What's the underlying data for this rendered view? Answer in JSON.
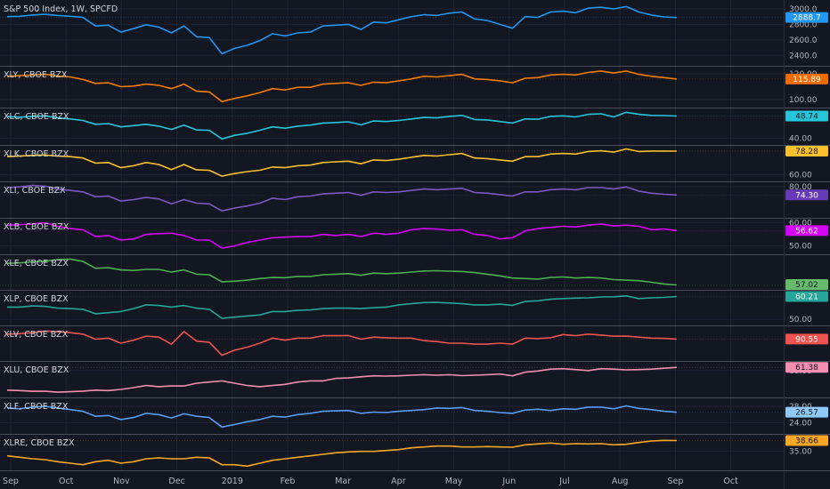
{
  "chart_data": {
    "type": "line",
    "x_axis": {
      "ticks": [
        "Sep",
        "Oct",
        "Nov",
        "Dec",
        "2019",
        "Feb",
        "Mar",
        "Apr",
        "May",
        "Jun",
        "Jul",
        "Aug",
        "Sep",
        "Oct"
      ],
      "grid": true
    },
    "panes": [
      {
        "label": "S&P 500 Index, 1W, SPCFD",
        "color": "#2962ff",
        "line_color": "#2196f3",
        "last_label": "2888.7",
        "badge_color": "#2196f3",
        "badge_text_color": "#ffffff",
        "ylim": [
          2300,
          3080
        ],
        "ticks": [
          {
            "v": 3000,
            "t": "3000.0"
          },
          {
            "v": 2800,
            "t": "2800.0"
          },
          {
            "v": 2600,
            "t": "2600.0"
          },
          {
            "v": 2400,
            "t": "2400.0"
          }
        ],
        "values": [
          2900,
          2905,
          2920,
          2930,
          2915,
          2905,
          2890,
          2780,
          2790,
          2700,
          2745,
          2795,
          2765,
          2690,
          2780,
          2640,
          2630,
          2420,
          2490,
          2530,
          2590,
          2680,
          2650,
          2690,
          2700,
          2780,
          2790,
          2800,
          2735,
          2830,
          2820,
          2860,
          2900,
          2925,
          2915,
          2945,
          2960,
          2870,
          2850,
          2800,
          2750,
          2900,
          2890,
          2960,
          2970,
          2950,
          3010,
          3020,
          3000,
          3030,
          2960,
          2920,
          2895,
          2888.7
        ]
      },
      {
        "label": "XLY, CBOE BZX",
        "color": "#f57c00",
        "line_color": "#f57c00",
        "last_label": "115.89",
        "badge_color": "#ef6c00",
        "badge_text_color": "#ffffff",
        "ylim": [
          96,
          124
        ],
        "ticks": [
          {
            "v": 120,
            "t": "120.00"
          },
          {
            "v": 100,
            "t": "100.00"
          }
        ],
        "values": [
          118,
          118.5,
          119,
          119.5,
          118.2,
          117.5,
          115.5,
          112.5,
          113,
          110,
          110.5,
          112,
          111,
          108.5,
          112,
          106.5,
          106,
          98.5,
          101,
          103,
          105.5,
          108.5,
          107.5,
          109.5,
          109.5,
          112,
          112.5,
          113,
          111,
          113.5,
          113,
          114.5,
          116,
          118,
          117.5,
          118.5,
          119.5,
          116,
          115.5,
          114.5,
          113,
          116.5,
          117,
          119,
          119.5,
          119,
          121,
          122,
          120.5,
          122,
          119.5,
          118,
          117,
          115.89
        ]
      },
      {
        "label": "XLC, CBOE BZX",
        "color": "#26c6da",
        "line_color": "#26c6da",
        "last_label": "48.74",
        "badge_color": "#26c6da",
        "badge_text_color": "#131722",
        "ylim": [
          38.5,
          51
        ],
        "ticks": [
          {
            "v": 40,
            "t": "40.00"
          }
        ],
        "values": [
          48.5,
          48.3,
          48.6,
          48.8,
          48.0,
          47.6,
          47.0,
          45.5,
          45.8,
          44.5,
          45,
          45.5,
          44.8,
          43.5,
          45.2,
          43.3,
          43.2,
          39.8,
          41.2,
          42,
          43.2,
          44.5,
          44,
          44.8,
          45.2,
          46,
          46.2,
          46.5,
          45.3,
          46.8,
          46.6,
          47,
          47.6,
          48.2,
          48,
          48.6,
          49,
          47.4,
          47.2,
          46.6,
          46,
          47.6,
          47.5,
          48.6,
          48.8,
          48.4,
          49.4,
          49.6,
          48.4,
          50.2,
          49.4,
          49,
          48.9,
          48.74
        ]
      },
      {
        "label": "XLK, CBOE BZX",
        "color": "#fbc02d",
        "line_color": "#fbc02d",
        "last_label": "78.28",
        "badge_color": "#fbc02d",
        "badge_text_color": "#131722",
        "ylim": [
          57,
          81
        ],
        "ticks": [
          {
            "v": 60,
            "t": "60.00"
          }
        ],
        "values": [
          74,
          74.5,
          75,
          75.3,
          74.5,
          74,
          73,
          69,
          69.5,
          65.5,
          67,
          69.5,
          68,
          64,
          68,
          63.8,
          63.5,
          59,
          61,
          62.5,
          63.5,
          66,
          65.5,
          67,
          67.5,
          69.5,
          70,
          70.5,
          68.5,
          71.5,
          71,
          72,
          73.5,
          75,
          74.5,
          75.5,
          76.5,
          73,
          72.5,
          71.5,
          70.5,
          74,
          74,
          76,
          76.5,
          76,
          78,
          78.5,
          77.5,
          80,
          78,
          78.3,
          78.3,
          78.28
        ]
      },
      {
        "label": "XLI, CBOE BZX",
        "color": "#7e57c2",
        "line_color": "#7e57c2",
        "last_label": "74.30",
        "badge_color": "#673ab7",
        "badge_text_color": "#ffffff",
        "ylim": [
          60,
          82
        ],
        "ticks": [
          {
            "v": 80,
            "t": "80.00"
          }
        ],
        "values": [
          79.5,
          80,
          81,
          80.5,
          78.5,
          77.5,
          76.5,
          73,
          73.5,
          70,
          71,
          72.5,
          71.5,
          68,
          71,
          68.5,
          68,
          63,
          65,
          66.5,
          68.5,
          72,
          71,
          73,
          73.5,
          75,
          75.5,
          76,
          74,
          76.5,
          76,
          76.5,
          77.5,
          78.5,
          78,
          78.5,
          79,
          76,
          75.5,
          74.5,
          73.5,
          76.5,
          76.5,
          78,
          78.5,
          78,
          79.5,
          79.5,
          78.5,
          80,
          77,
          75.5,
          74.8,
          74.3
        ]
      },
      {
        "label": "XLB, CBOE BZX",
        "color": "#d500f9",
        "line_color": "#d500f9",
        "last_label": "56.62",
        "badge_color": "#d500f9",
        "badge_text_color": "#ffffff",
        "ylim": [
          47.5,
          61
        ],
        "ticks": [
          {
            "v": 60,
            "t": "60.00"
          },
          {
            "v": 50,
            "t": "50.00"
          }
        ],
        "values": [
          59,
          59.2,
          59.5,
          60,
          58.5,
          57.5,
          57,
          54,
          54.5,
          52.5,
          53,
          55,
          55.3,
          55.5,
          54.5,
          52.5,
          52.5,
          49,
          50,
          51.5,
          52.5,
          53.5,
          53.8,
          54,
          54,
          55,
          54.5,
          55,
          54,
          55.5,
          55,
          55.5,
          57,
          57.5,
          57.3,
          56.8,
          57,
          55,
          54.5,
          53,
          53.5,
          56.5,
          57.5,
          58,
          58.5,
          58.2,
          59,
          59.5,
          58.6,
          59,
          58.5,
          57,
          57.3,
          56.62
        ]
      },
      {
        "label": "XLE, CBOE BZX",
        "color": "#43a047",
        "line_color": "#4caf50",
        "last_label": "57.02",
        "badge_color": "#66bb6a",
        "badge_text_color": "#131722",
        "ylim": [
          55,
          83
        ],
        "ticks": [],
        "values": [
          77,
          77.5,
          78.5,
          79,
          80.5,
          81,
          79,
          72.5,
          73,
          71,
          70.5,
          71.5,
          71.5,
          69,
          71,
          67,
          66.5,
          60,
          60.5,
          61.5,
          63,
          64,
          63.8,
          65,
          65,
          66.5,
          67,
          67.5,
          66,
          68,
          67.5,
          68,
          69,
          70,
          70.2,
          69.8,
          69.5,
          68.5,
          67,
          65.5,
          63.5,
          63,
          62.5,
          64,
          64.5,
          63.5,
          64,
          63.5,
          62,
          61.5,
          61,
          59.5,
          58,
          57.02
        ]
      },
      {
        "label": "XLP, CBOE BZX",
        "color": "#26a69a",
        "line_color": "#26a69a",
        "last_label": "60.21",
        "badge_color": "#26a69a",
        "badge_text_color": "#ffffff",
        "ylim": [
          48.5,
          62
        ],
        "ticks": [
          {
            "v": 50,
            "t": "50.00"
          }
        ],
        "values": [
          55.5,
          55.5,
          56,
          55.8,
          55,
          54.8,
          54.5,
          52.5,
          53,
          53.5,
          54.8,
          56.5,
          56.2,
          55.5,
          56.2,
          55,
          54.5,
          50.5,
          51,
          51.5,
          52,
          53.5,
          53.5,
          54,
          54.2,
          54.8,
          55,
          55,
          54.8,
          55.2,
          55.5,
          56.5,
          57,
          57.5,
          57.6,
          57.3,
          57,
          56.5,
          56.5,
          56.8,
          56.3,
          58,
          58.3,
          59,
          59.3,
          59.5,
          59.6,
          60,
          60.1,
          60.5,
          59.3,
          59.6,
          59.8,
          60.21
        ]
      },
      {
        "label": "XLV, CBOE BZX",
        "color": "#ef5350",
        "line_color": "#ef5350",
        "last_label": "90.55",
        "badge_color": "#ef5350",
        "badge_text_color": "#ffffff",
        "ylim": [
          81,
          96
        ],
        "ticks": [],
        "values": [
          93,
          93.2,
          93.7,
          94.5,
          94.2,
          93.7,
          93,
          90.5,
          91,
          88.5,
          90,
          92,
          91.5,
          88,
          94.3,
          89.5,
          89,
          82.5,
          85,
          86.5,
          88.5,
          91,
          90,
          91,
          91,
          92.2,
          92.2,
          92.3,
          90.5,
          91.5,
          91.2,
          91,
          91,
          89.8,
          89.3,
          88.5,
          88.5,
          88,
          88,
          88.5,
          88,
          91,
          90.8,
          91.2,
          92.8,
          92.2,
          93,
          92.5,
          92,
          92,
          91.5,
          91,
          90.9,
          90.55
        ]
      },
      {
        "label": "XLU, CBOE BZX",
        "color": "#f48fb1",
        "line_color": "#f48fb1",
        "last_label": "61.38",
        "badge_color": "#f48fb1",
        "badge_text_color": "#131722",
        "ylim": [
          49.5,
          63
        ],
        "ticks": [
          {
            "v": 60,
            "t": "60.00"
          }
        ],
        "values": [
          51.5,
          51.3,
          51,
          51,
          50.6,
          50.8,
          51.1,
          51.5,
          51.3,
          51.8,
          52.6,
          53.5,
          53,
          53.3,
          53.3,
          54.5,
          55,
          55.5,
          54.5,
          53.5,
          53,
          53.5,
          54,
          55,
          55.5,
          55.5,
          56.6,
          56.8,
          57.3,
          57.7,
          57.6,
          57.7,
          58,
          58.2,
          58,
          58.2,
          57.8,
          58,
          58.2,
          58.5,
          57.7,
          59.3,
          59.8,
          60.6,
          60.8,
          60.4,
          60,
          60.8,
          60.6,
          60.3,
          60.4,
          60.6,
          61,
          61.38
        ]
      },
      {
        "label": "XLF, CBOE BZX",
        "color": "#64b5f6",
        "line_color": "#5b9cf6",
        "last_label": "26.57",
        "badge_color": "#90caf9",
        "badge_text_color": "#131722",
        "ylim": [
          22,
          29.5
        ],
        "ticks": [
          {
            "v": 28,
            "t": "28.00"
          },
          {
            "v": 24,
            "t": "24.00"
          }
        ],
        "values": [
          27.6,
          27.4,
          27.8,
          28.0,
          27.6,
          27.2,
          26.8,
          25.6,
          25.8,
          24.8,
          25.3,
          26.3,
          26.0,
          25.2,
          26.2,
          25.6,
          25.3,
          23.0,
          23.6,
          24.3,
          24.8,
          25.6,
          25.4,
          26.0,
          26.3,
          26.8,
          26.9,
          27.0,
          26.3,
          26.6,
          26.5,
          26.8,
          27.0,
          27.2,
          27.6,
          27.5,
          27.7,
          27.0,
          26.8,
          26.5,
          26.3,
          27.1,
          27.3,
          27.0,
          27.4,
          27.3,
          27.8,
          27.8,
          27.4,
          28.1,
          27.5,
          27.2,
          26.8,
          26.57
        ]
      },
      {
        "label": "XLRE, CBOE BZX",
        "color": "#ffa726",
        "line_color": "#ffa726",
        "last_label": "38.66",
        "badge_color": "#ffa726",
        "badge_text_color": "#131722",
        "ylim": [
          29.5,
          40
        ],
        "ticks": [
          {
            "v": 35,
            "t": "35.00"
          }
        ],
        "values": [
          33.5,
          33,
          32.5,
          32.2,
          31.5,
          31,
          30.5,
          31.5,
          32,
          31,
          31.5,
          32.5,
          32.8,
          32.5,
          32.5,
          33,
          32.8,
          30.5,
          30.5,
          30,
          31,
          32,
          32.5,
          33,
          33.5,
          34,
          34.5,
          34.8,
          35,
          35,
          35.3,
          35.6,
          36.2,
          36.5,
          36.8,
          36.8,
          36.5,
          36.5,
          36.6,
          36.5,
          36.4,
          37.2,
          37.5,
          37.8,
          37.4,
          37.6,
          37.5,
          37.6,
          37.2,
          37.4,
          38,
          38.5,
          38.7,
          38.66
        ]
      }
    ]
  }
}
